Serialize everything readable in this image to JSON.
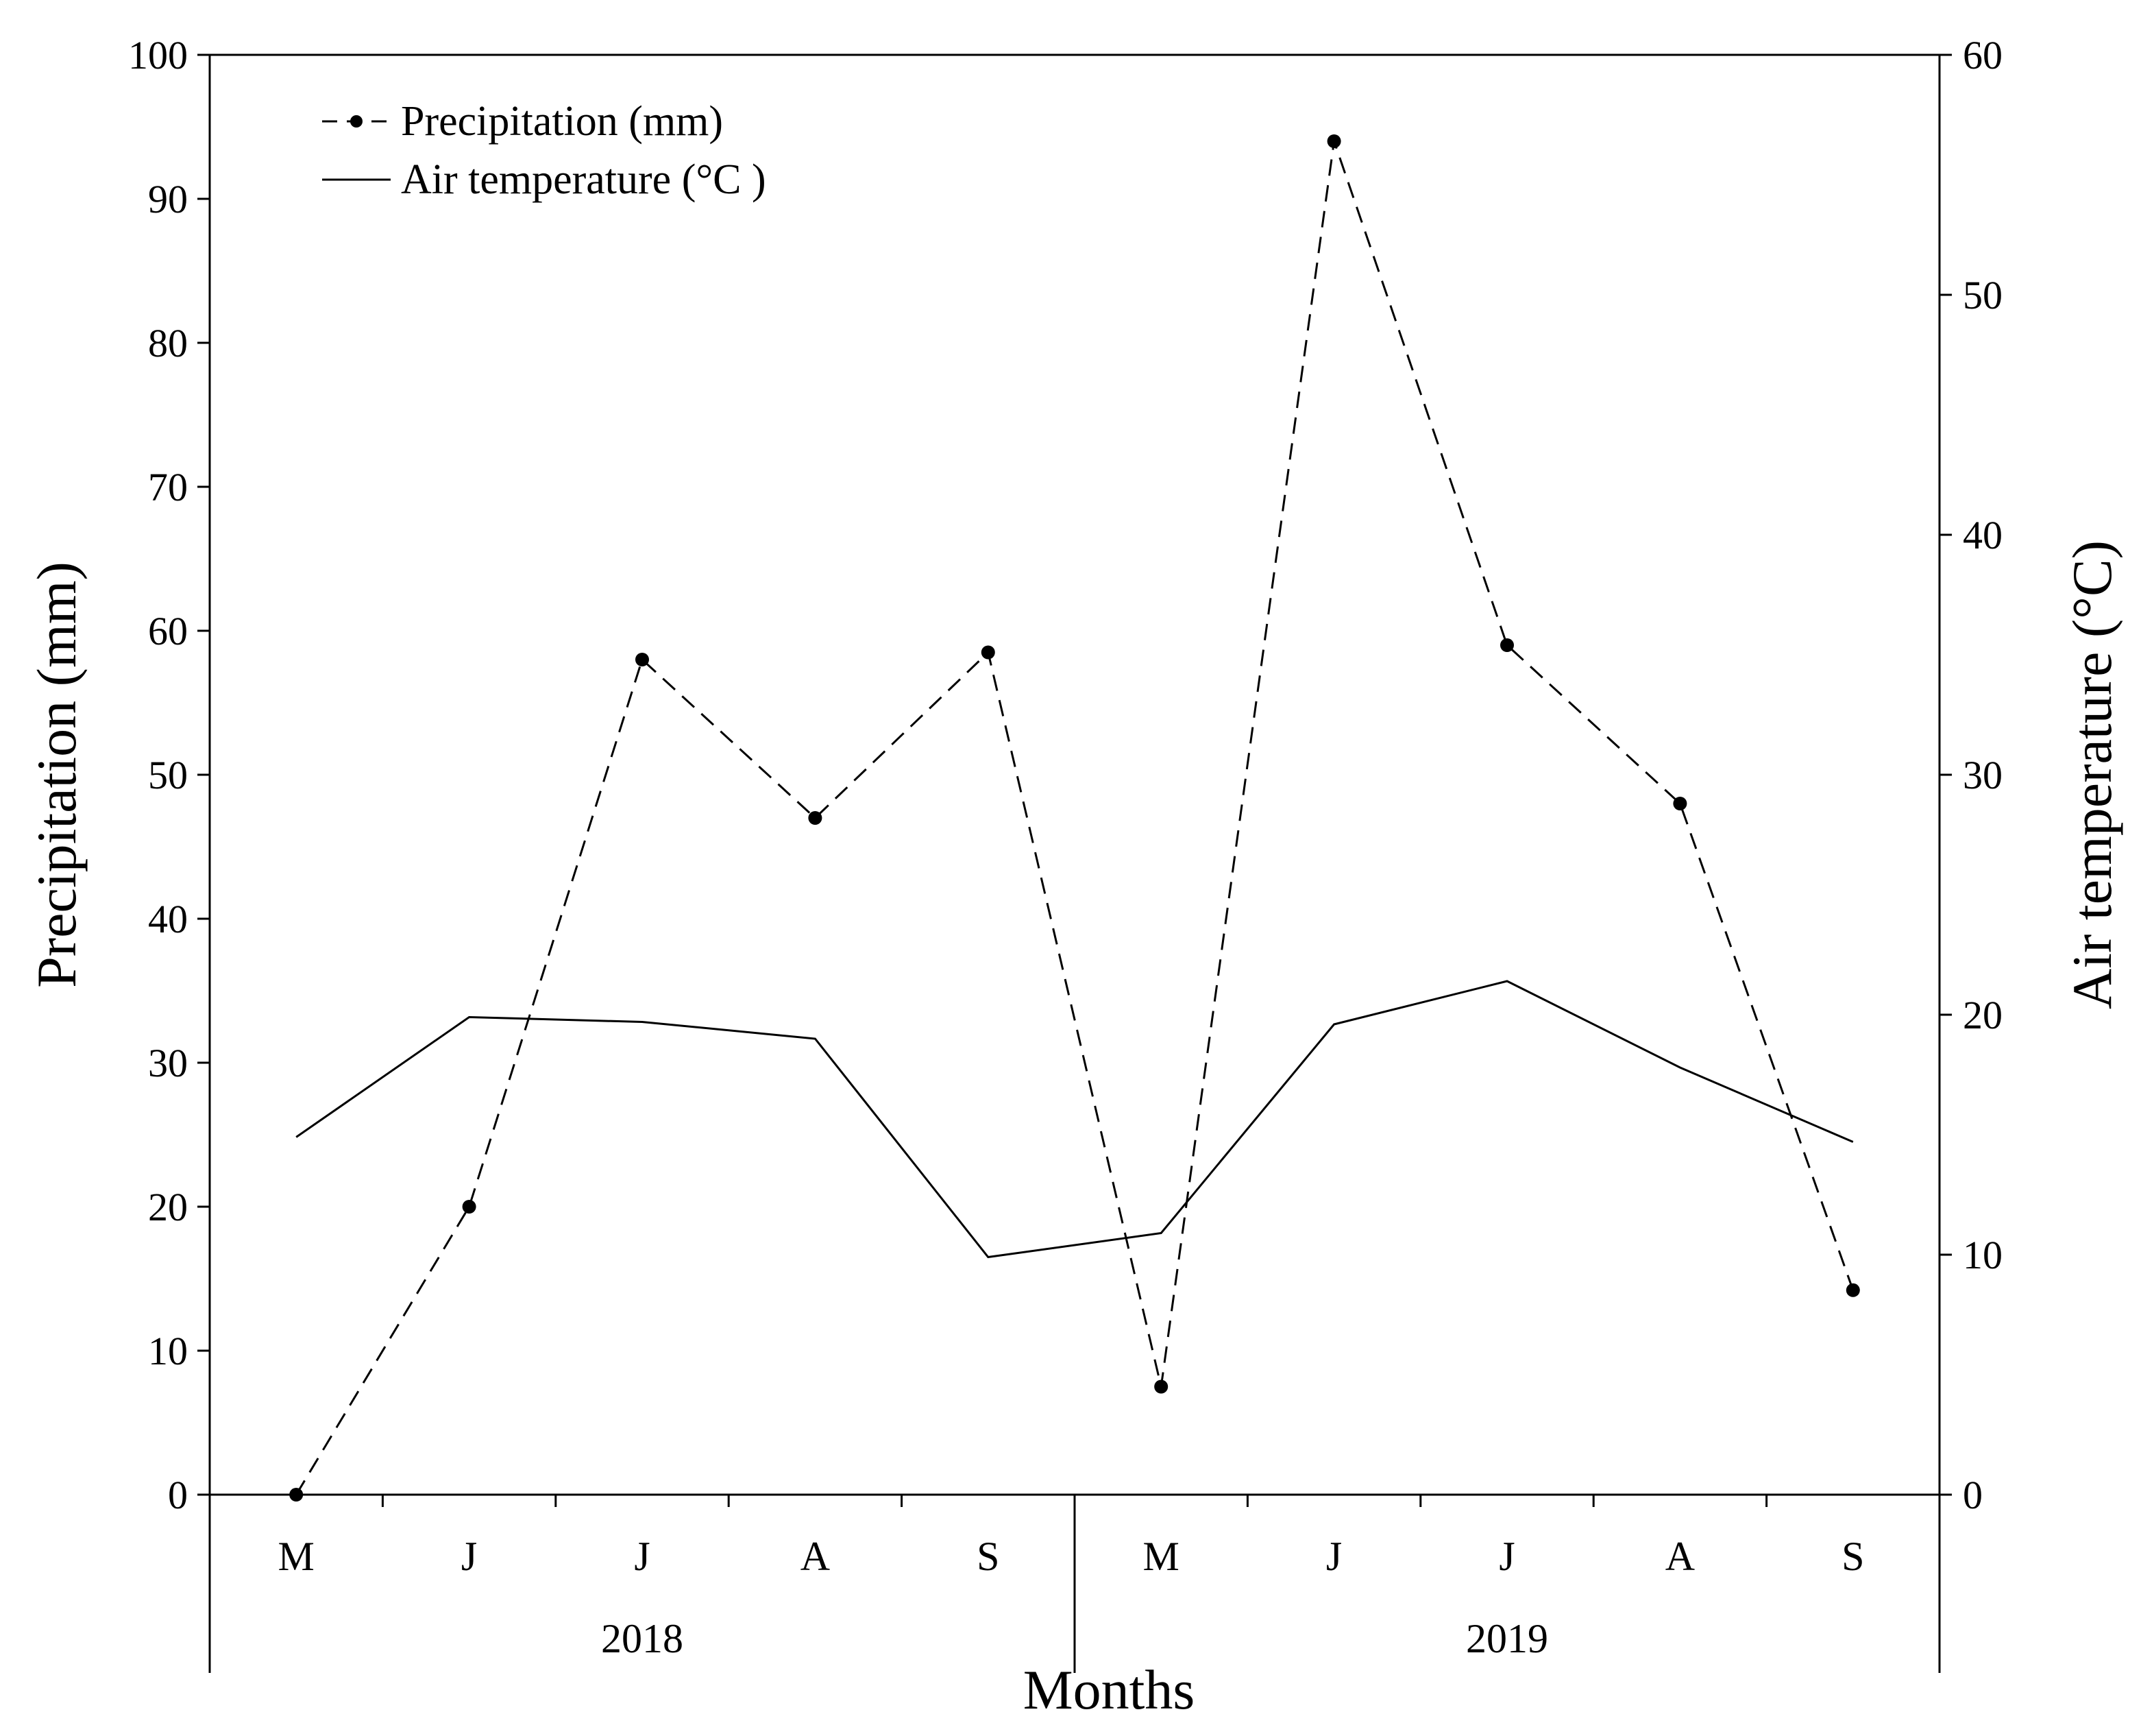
{
  "chart_data": {
    "type": "line",
    "categories": [
      "M",
      "J",
      "J",
      "A",
      "S",
      "M",
      "J",
      "J",
      "A",
      "S"
    ],
    "groups": [
      {
        "label": "2018",
        "count": 5
      },
      {
        "label": "2019",
        "count": 5
      }
    ],
    "series": [
      {
        "name": "Precipitation (mm)",
        "axis": "left",
        "style": "dashed-with-markers",
        "values": [
          0,
          20,
          58,
          47,
          58.5,
          7.5,
          94,
          59,
          48,
          14.2
        ]
      },
      {
        "name": "Air temperature (°C )",
        "axis": "right",
        "style": "solid",
        "values": [
          14.9,
          19.9,
          19.7,
          19.0,
          9.9,
          10.9,
          19.6,
          21.4,
          17.8,
          14.7
        ]
      }
    ],
    "xlabel": "Months",
    "ylabel": "Precipitation (mm)",
    "y2label": "Air temperature (°C)",
    "ylim": [
      0,
      100
    ],
    "y2lim": [
      0,
      60
    ],
    "yticks": [
      0,
      10,
      20,
      30,
      40,
      50,
      60,
      70,
      80,
      90,
      100
    ],
    "y2ticks": [
      0,
      10,
      20,
      30,
      40,
      50,
      60
    ],
    "grid": false,
    "legend": "top-left"
  }
}
